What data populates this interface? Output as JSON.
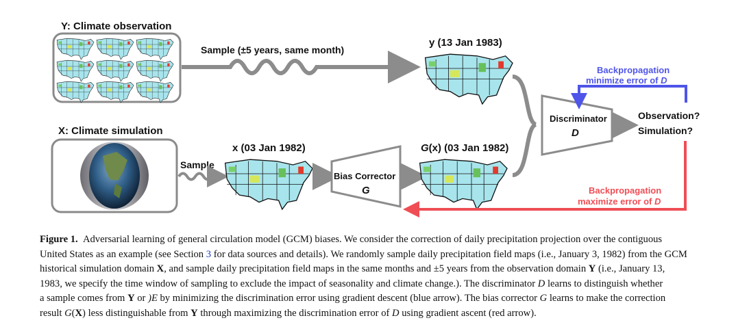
{
  "figure": {
    "y_domain_title": "Y: Climate observation",
    "x_domain_title": "X: Climate simulation",
    "sample_y_label": "Sample (±5 years, same month)",
    "sample_x_label": "Sample",
    "y_sample_title": "y (13 Jan 1983)",
    "x_sample_title": "x (03 Jan 1982)",
    "gx_title_italic": "G",
    "gx_title_rest": "(x) (03 Jan 1982)",
    "bias_corrector_line1": "Bias Corrector",
    "bias_corrector_line2": "G",
    "discriminator_line1": "Discriminator",
    "discriminator_line2": "D",
    "decision_line1": "Observation?",
    "decision_line2": "Simulation?",
    "blue_bp_line1": "Backpropagation",
    "blue_bp_line2_prefix": "minimize error of ",
    "blue_bp_line2_var": "D",
    "red_bp_line1": "Backpropagation",
    "red_bp_line2_prefix": "maximize error of ",
    "red_bp_line2_var": "D",
    "colors": {
      "blue_arrow": "#4f55e8",
      "red_arrow": "#ef4e55",
      "gray_arrow": "#8c8c8c"
    }
  },
  "caption": {
    "label": "Figure 1.",
    "l1_text": "Adversarial learning of general circulation model (GCM) biases. We consider the correction of daily precipitation projection over the contiguous",
    "l2_a": "United States as an example (see Section ",
    "l2_ref": "3",
    "l2_b": " for data sources and details). We randomly sample daily precipitation field maps (i.e., January 3, 1982) from the GCM",
    "l3_a": "historical simulation domain ",
    "l3_X": "X",
    "l3_b": ", and sample daily precipitation field maps in the same months and ±5 years from the observation domain ",
    "l3_Y": "Y",
    "l3_c": " (i.e., January 13,",
    "l4_a": "1983, we specify the time window of sampling to exclude the impact of seasonality and climate change.). The discriminator ",
    "l4_D": "D",
    "l4_b": " learns to distinguish whether",
    "l5_a": "a sample comes from ",
    "l5_Y": "Y",
    "l5_b": " or ",
    "l5_E": ")E",
    "l5_c": " by minimizing the discrimination error using gradient descent (blue arrow). The bias corrector ",
    "l5_G": "G",
    "l5_d": " learns to make the correction",
    "l6_a": "result ",
    "l6_G": "G",
    "l6_X": "X",
    "l6_b": " less distinguishable from ",
    "l6_Y": "Y",
    "l6_c": " through maximizing the discrimination error of ",
    "l6_D": "D",
    "l6_d": " using gradient ascent (red arrow)."
  }
}
